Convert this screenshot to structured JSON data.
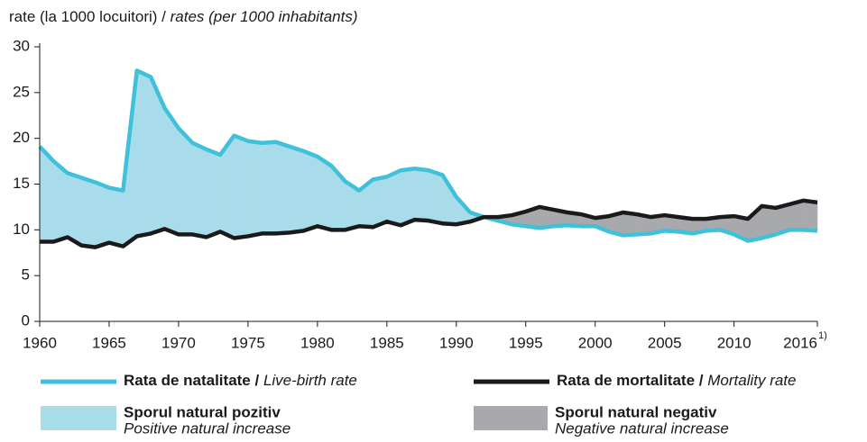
{
  "chart_data": {
    "type": "line",
    "ylabel": "rate (la 1000 locuitori) /",
    "ylabel_en": "rates (per 1000 inhabitants)",
    "x": [
      1960,
      1961,
      1962,
      1963,
      1964,
      1965,
      1966,
      1967,
      1968,
      1969,
      1970,
      1971,
      1972,
      1973,
      1974,
      1975,
      1976,
      1977,
      1978,
      1979,
      1980,
      1981,
      1982,
      1983,
      1984,
      1985,
      1986,
      1987,
      1988,
      1989,
      1990,
      1991,
      1992,
      1993,
      1994,
      1995,
      1996,
      1997,
      1998,
      1999,
      2000,
      2001,
      2002,
      2003,
      2004,
      2005,
      2006,
      2007,
      2008,
      2009,
      2010,
      2011,
      2012,
      2013,
      2014,
      2015,
      2016
    ],
    "series": [
      {
        "name": "Rata de natalitate /",
        "name_en": "Live-birth rate",
        "color": "#3ec1d9",
        "values": [
          19.1,
          17.5,
          16.2,
          15.7,
          15.2,
          14.6,
          14.3,
          27.4,
          26.7,
          23.3,
          21.1,
          19.5,
          18.8,
          18.2,
          20.3,
          19.7,
          19.5,
          19.6,
          19.1,
          18.6,
          18.0,
          17.0,
          15.3,
          14.3,
          15.5,
          15.8,
          16.5,
          16.7,
          16.5,
          16.0,
          13.6,
          11.9,
          11.4,
          11.0,
          10.6,
          10.4,
          10.2,
          10.4,
          10.5,
          10.4,
          10.4,
          9.8,
          9.4,
          9.5,
          9.6,
          9.9,
          9.8,
          9.6,
          9.9,
          10.0,
          9.5,
          8.8,
          9.1,
          9.5,
          10.0,
          10.0,
          9.9
        ]
      },
      {
        "name": "Rata de mortalitate /",
        "name_en": "Mortality rate",
        "color": "#1a1a1a",
        "values": [
          8.7,
          8.7,
          9.2,
          8.3,
          8.1,
          8.6,
          8.2,
          9.3,
          9.6,
          10.1,
          9.5,
          9.5,
          9.2,
          9.8,
          9.1,
          9.3,
          9.6,
          9.6,
          9.7,
          9.9,
          10.4,
          10.0,
          10.0,
          10.4,
          10.3,
          10.9,
          10.5,
          11.1,
          11.0,
          10.7,
          10.6,
          10.9,
          11.4,
          11.4,
          11.6,
          12.0,
          12.5,
          12.2,
          11.9,
          11.7,
          11.3,
          11.5,
          11.9,
          11.7,
          11.4,
          11.6,
          11.4,
          11.2,
          11.2,
          11.4,
          11.5,
          11.2,
          12.6,
          12.4,
          12.8,
          13.2,
          13.0
        ]
      }
    ],
    "areas": [
      {
        "name": "Sporul natural pozitiv",
        "name_en": "Positive natural increase",
        "color": "#a9dcea"
      },
      {
        "name": "Sporul natural negativ",
        "name_en": "Negative natural increase",
        "color": "#a8a9ad"
      }
    ],
    "xlim": [
      1960,
      2016
    ],
    "xticks": [
      1960,
      1965,
      1970,
      1975,
      1980,
      1985,
      1990,
      1995,
      2000,
      2005,
      2010,
      2016
    ],
    "footnote_mark": "1)",
    "ylim": [
      0,
      30
    ],
    "yticks": [
      0,
      5,
      10,
      15,
      20,
      25,
      30
    ]
  }
}
